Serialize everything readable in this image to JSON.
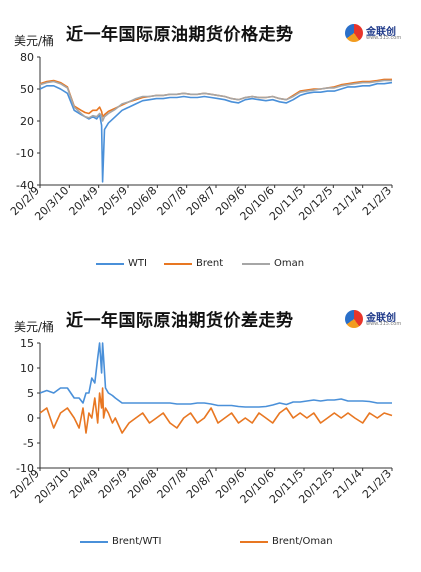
{
  "colors": {
    "wti": "#4a90d9",
    "brent": "#e87722",
    "oman": "#a6a6a6",
    "axis": "#333333"
  },
  "logo": {
    "text": "金联创",
    "url": "www.315.com"
  },
  "chart_data": [
    {
      "type": "line",
      "title": "近一年国际原油期货价格走势",
      "ylabel": "美元/桶",
      "ylim": [
        -40,
        80
      ],
      "yticks": [
        -40,
        -10,
        20,
        50,
        80
      ],
      "tick_labels": [
        "20/2/9",
        "20/3/10",
        "20/4/9",
        "20/5/9",
        "20/6/8",
        "20/7/8",
        "20/8/7",
        "20/9/6",
        "20/10/6",
        "20/11/5",
        "20/12/5",
        "21/1/4",
        "21/2/3"
      ],
      "x": [
        0,
        7,
        14,
        21,
        28,
        35,
        42,
        46,
        50,
        54,
        58,
        61,
        63,
        64,
        66,
        70,
        77,
        84,
        91,
        98,
        105,
        112,
        119,
        126,
        133,
        140,
        147,
        154,
        161,
        168,
        175,
        182,
        189,
        196,
        203,
        210,
        217,
        224,
        231,
        238,
        245,
        252,
        259,
        266,
        273,
        280,
        287,
        294,
        301,
        308,
        315,
        322,
        330,
        337,
        345,
        352,
        360
      ],
      "series": [
        {
          "name": "WTI",
          "values": [
            50,
            53,
            53,
            50,
            46,
            30,
            26,
            24,
            22,
            24,
            22,
            26,
            16,
            -37,
            12,
            18,
            24,
            30,
            33,
            36,
            39,
            40,
            41,
            41,
            42,
            42,
            43,
            42,
            42,
            43,
            42,
            41,
            40,
            38,
            37,
            40,
            41,
            40,
            39,
            40,
            38,
            37,
            40,
            44,
            46,
            47,
            47,
            48,
            48,
            50,
            52,
            52,
            53,
            53,
            55,
            55,
            56
          ]
        },
        {
          "name": "Brent",
          "values": [
            55,
            57,
            58,
            56,
            52,
            34,
            30,
            28,
            27,
            30,
            30,
            33,
            29,
            24,
            26,
            29,
            32,
            35,
            38,
            40,
            42,
            43,
            44,
            44,
            45,
            45,
            46,
            45,
            45,
            46,
            45,
            44,
            43,
            41,
            40,
            42,
            43,
            42,
            42,
            43,
            41,
            40,
            44,
            48,
            49,
            50,
            50,
            51,
            52,
            54,
            55,
            56,
            57,
            57,
            58,
            59,
            59
          ]
        },
        {
          "name": "Oman",
          "values": [
            54,
            56,
            57,
            55,
            51,
            33,
            27,
            24,
            23,
            25,
            24,
            27,
            25,
            20,
            24,
            27,
            31,
            36,
            38,
            41,
            43,
            43,
            44,
            44,
            45,
            45,
            46,
            45,
            45,
            46,
            45,
            44,
            43,
            41,
            40,
            42,
            43,
            42,
            42,
            43,
            41,
            40,
            43,
            47,
            48,
            49,
            50,
            51,
            51,
            53,
            54,
            55,
            56,
            56,
            57,
            58,
            58
          ]
        }
      ]
    },
    {
      "type": "line",
      "title": "近一年国际原油期货价差走势",
      "ylabel": "美元/桶",
      "ylim": [
        -10,
        15
      ],
      "yticks": [
        -10,
        -5,
        0,
        5,
        10,
        15
      ],
      "tick_labels": [
        "20/2/9",
        "20/3/10",
        "20/4/9",
        "20/5/9",
        "20/6/8",
        "20/7/8",
        "20/8/7",
        "20/9/6",
        "20/10/6",
        "20/11/5",
        "20/12/5",
        "21/1/4",
        "21/2/3"
      ],
      "x": [
        0,
        7,
        14,
        21,
        28,
        35,
        40,
        44,
        47,
        50,
        53,
        56,
        59,
        61,
        63,
        64,
        65,
        67,
        70,
        74,
        77,
        84,
        91,
        98,
        105,
        112,
        119,
        126,
        133,
        140,
        147,
        154,
        161,
        168,
        175,
        182,
        189,
        196,
        203,
        210,
        217,
        224,
        231,
        238,
        245,
        252,
        259,
        266,
        273,
        280,
        287,
        294,
        301,
        308,
        315,
        322,
        330,
        337,
        345,
        352,
        360
      ],
      "series": [
        {
          "name": "Brent/WTI",
          "values": [
            5,
            5.5,
            5,
            6,
            6,
            4,
            4,
            3,
            5,
            5,
            8,
            7,
            12,
            15,
            9,
            15,
            12,
            6,
            5,
            4.5,
            4,
            3,
            3,
            3,
            3,
            3,
            3,
            3,
            3,
            2.8,
            2.8,
            2.8,
            3,
            3,
            2.8,
            2.5,
            2.5,
            2.5,
            2.3,
            2.2,
            2.2,
            2.2,
            2.3,
            2.6,
            3,
            2.7,
            3.2,
            3.2,
            3.4,
            3.6,
            3.4,
            3.6,
            3.6,
            3.8,
            3.4,
            3.4,
            3.4,
            3.3,
            3,
            3,
            3
          ]
        },
        {
          "name": "Brent/Oman",
          "values": [
            1,
            2,
            -2,
            1,
            2,
            0,
            -2,
            2,
            -3,
            1,
            0,
            4,
            -1,
            5,
            2,
            6,
            0,
            2,
            1,
            -1,
            0,
            -3,
            -1,
            0,
            1,
            -1,
            0,
            1,
            -1,
            -2,
            0,
            1,
            -1,
            0,
            2,
            -1,
            0,
            1,
            -1,
            0,
            -1,
            1,
            0,
            -1,
            1,
            2,
            0,
            1,
            0,
            1,
            -1,
            0,
            1,
            0,
            1,
            0,
            -1,
            1,
            0,
            1,
            0.5
          ]
        }
      ]
    }
  ]
}
